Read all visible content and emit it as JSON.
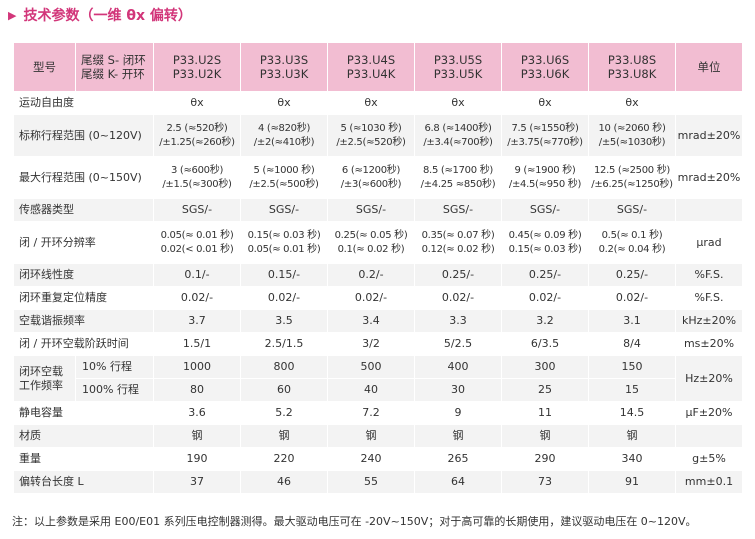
{
  "title": "技术参数（一维 θx 偏转）",
  "header": {
    "model": "型号",
    "cable_s": "尾缀 S- 闭环",
    "cable_k": "尾缀 K- 开环",
    "unit": "单位",
    "models": [
      [
        "P33.U2S",
        "P33.U2K"
      ],
      [
        "P33.U3S",
        "P33.U3K"
      ],
      [
        "P33.U4S",
        "P33.U4K"
      ],
      [
        "P33.U5S",
        "P33.U5K"
      ],
      [
        "P33.U6S",
        "P33.U6K"
      ],
      [
        "P33.U8S",
        "P33.U8K"
      ]
    ]
  },
  "rows": [
    {
      "label": "运动自由度",
      "values": [
        "θx",
        "θx",
        "θx",
        "θx",
        "θx",
        "θx"
      ],
      "unit": ""
    },
    {
      "label": "标称行程范围 (0~120V)",
      "values": [
        [
          "2.5 (≈520秒)",
          "/±1.25(≈260秒)"
        ],
        [
          "4 (≈820秒)",
          "/±2(≈410秒)"
        ],
        [
          "5 (≈1030 秒)",
          "/±2.5(≈520秒)"
        ],
        [
          "6.8 (≈1400秒)",
          "/±3.4(≈700秒)"
        ],
        [
          "7.5 (≈1550秒)",
          "/±3.75(≈770秒)"
        ],
        [
          "10 (≈2060 秒)",
          "/±5(≈1030秒)"
        ]
      ],
      "unit": "mrad±20%"
    },
    {
      "label": "最大行程范围 (0~150V)",
      "values": [
        [
          "3 (≈600秒)",
          "/±1.5(≈300秒)"
        ],
        [
          "5 (≈1000 秒)",
          "/±2.5(≈500秒)"
        ],
        [
          "6 (≈1200秒)",
          "/±3(≈600秒)"
        ],
        [
          "8.5 (≈1700 秒)",
          "/±4.25 ≈850秒)"
        ],
        [
          "9 (≈1900 秒)",
          "/±4.5(≈950 秒)"
        ],
        [
          "12.5 (≈2500 秒)",
          "/±6.25(≈1250秒)"
        ]
      ],
      "unit": "mrad±20%"
    },
    {
      "label": "传感器类型",
      "values": [
        "SGS/-",
        "SGS/-",
        "SGS/-",
        "SGS/-",
        "SGS/-",
        "SGS/-"
      ],
      "unit": ""
    },
    {
      "label": "闭 / 开环分辨率",
      "values": [
        [
          "0.05(≈ 0.01 秒)",
          "0.02(< 0.01 秒)"
        ],
        [
          "0.15(≈ 0.03 秒)",
          "0.05(≈ 0.01 秒)"
        ],
        [
          "0.25(≈ 0.05 秒)",
          "0.1(≈ 0.02 秒)"
        ],
        [
          "0.35(≈ 0.07 秒)",
          "0.12(≈ 0.02 秒)"
        ],
        [
          "0.45(≈ 0.09 秒)",
          "0.15(≈ 0.03 秒)"
        ],
        [
          "0.5(≈ 0.1 秒)",
          "0.2(≈ 0.04 秒)"
        ]
      ],
      "unit": "μrad"
    },
    {
      "label": "闭环线性度",
      "values": [
        "0.1/-",
        "0.15/-",
        "0.2/-",
        "0.25/-",
        "0.25/-",
        "0.25/-"
      ],
      "unit": "%F.S."
    },
    {
      "label": "闭环重复定位精度",
      "values": [
        "0.02/-",
        "0.02/-",
        "0.02/-",
        "0.02/-",
        "0.02/-",
        "0.02/-"
      ],
      "unit": "%F.S."
    },
    {
      "label": "空载谐振频率",
      "values": [
        "3.7",
        "3.5",
        "3.4",
        "3.3",
        "3.2",
        "3.1"
      ],
      "unit": "kHz±20%"
    },
    {
      "label": "闭 / 开环空载阶跃时间",
      "values": [
        "1.5/1",
        "2.5/1.5",
        "3/2",
        "5/2.5",
        "6/3.5",
        "8/4"
      ],
      "unit": "ms±20%"
    }
  ],
  "freq_group": {
    "label_line1": "闭环空载",
    "label_line2": "工作频率",
    "sub_rows": [
      {
        "label": "10% 行程",
        "values": [
          "1000",
          "800",
          "500",
          "400",
          "300",
          "150"
        ]
      },
      {
        "label": "100% 行程",
        "values": [
          "80",
          "60",
          "40",
          "30",
          "25",
          "15"
        ]
      }
    ],
    "unit": "Hz±20%"
  },
  "rows_after": [
    {
      "label": "静电容量",
      "values": [
        "3.6",
        "5.2",
        "7.2",
        "9",
        "11",
        "14.5"
      ],
      "unit": "μF±20%"
    },
    {
      "label": "材质",
      "values": [
        "钢",
        "钢",
        "钢",
        "钢",
        "钢",
        "钢"
      ],
      "unit": ""
    },
    {
      "label": "重量",
      "values": [
        "190",
        "220",
        "240",
        "265",
        "290",
        "340"
      ],
      "unit": "g±5%"
    },
    {
      "label": "偏转台长度 L",
      "values": [
        "37",
        "46",
        "55",
        "64",
        "73",
        "91"
      ],
      "unit": "mm±0.1"
    }
  ],
  "note": "注：以上参数是采用 E00/E01 系列压电控制器测得。最大驱动电压可在 -20V~150V；对于高可靠的长期使用，建议驱动电压在 0~120V。"
}
